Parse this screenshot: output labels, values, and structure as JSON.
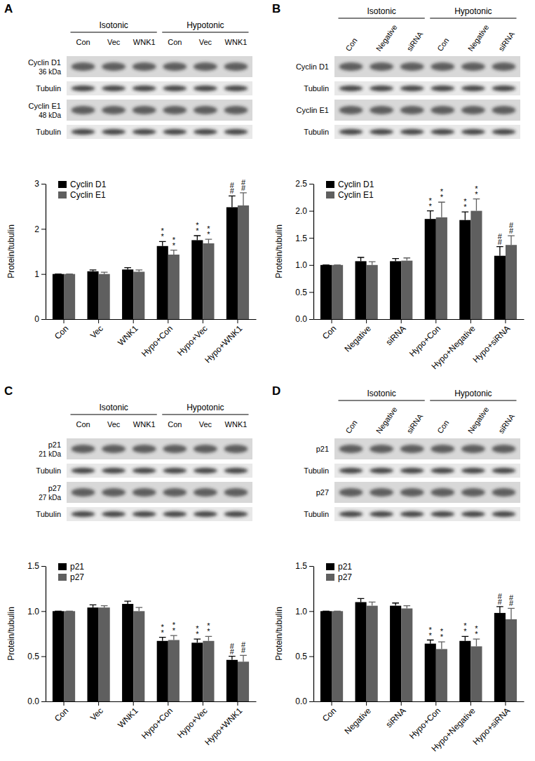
{
  "chart_data": [
    {
      "type": "bar",
      "title": "A",
      "y_label": "Protein/tubulin",
      "annotations": {
        "groups": [
          "Isotonic",
          "Hypotonic"
        ],
        "lanes": [
          "Con",
          "Vec",
          "WNK1",
          "Con",
          "Vec",
          "WNK1"
        ],
        "blots": [
          {
            "label": "Cyclin D1",
            "size": "36 kDa"
          },
          {
            "label": "Tubulin"
          },
          {
            "label": "Cyclin E1",
            "size": "48 kDa"
          },
          {
            "label": "Tubulin"
          }
        ]
      },
      "categories": [
        "Con",
        "Vec",
        "WNK1",
        "Hypo+Con",
        "Hypo+Vec",
        "Hypo+WNK1"
      ],
      "series": [
        {
          "name": "Cyclin D1",
          "color": "#000000",
          "values": [
            1.0,
            1.06,
            1.1,
            1.62,
            1.75,
            2.48
          ],
          "errors": [
            0,
            0.03,
            0.04,
            0.1,
            0.1,
            0.25
          ],
          "significance": [
            null,
            null,
            null,
            "**",
            "**",
            "##"
          ]
        },
        {
          "name": "Cyclin E1",
          "color": "#5f5f5f",
          "values": [
            1.0,
            1.0,
            1.05,
            1.43,
            1.68,
            2.52
          ],
          "errors": [
            0,
            0.04,
            0.04,
            0.1,
            0.09,
            0.28
          ],
          "significance": [
            null,
            null,
            null,
            "**",
            "**",
            "##"
          ]
        }
      ],
      "ylim": [
        0,
        3
      ],
      "yticks": [
        0,
        1,
        2,
        3
      ],
      "legend": "top-left"
    },
    {
      "type": "bar",
      "title": "B",
      "y_label": "Protein/tubulin",
      "annotations": {
        "groups": [
          "Isotonic",
          "Hypotonic"
        ],
        "lanes": [
          "Con",
          "Negative",
          "siRNA",
          "Con",
          "Negative",
          "siRNA"
        ],
        "blots": [
          {
            "label": "Cyclin D1"
          },
          {
            "label": "Tubulin"
          },
          {
            "label": "Cyclin E1"
          },
          {
            "label": "Tubulin"
          }
        ]
      },
      "categories": [
        "Con",
        "Negative",
        "siRNA",
        "Hypo+Con",
        "Hypo+Negative",
        "Hypo+siRNA"
      ],
      "series": [
        {
          "name": "Cyclin D1",
          "color": "#000000",
          "values": [
            1.0,
            1.07,
            1.07,
            1.85,
            1.83,
            1.17
          ],
          "errors": [
            0,
            0.07,
            0.05,
            0.15,
            0.15,
            0.17
          ],
          "significance": [
            null,
            null,
            null,
            "**",
            "**",
            "##"
          ]
        },
        {
          "name": "Cyclin E1",
          "color": "#5f5f5f",
          "values": [
            1.0,
            1.0,
            1.08,
            1.88,
            2.0,
            1.37
          ],
          "errors": [
            0,
            0.06,
            0.05,
            0.28,
            0.22,
            0.17
          ],
          "significance": [
            null,
            null,
            null,
            "**",
            "**",
            "##"
          ]
        }
      ],
      "ylim": [
        0,
        2.5
      ],
      "yticks": [
        {
          "value": 0,
          "label": "0.0"
        },
        0.5,
        {
          "value": 1,
          "label": "1.0"
        },
        1.5,
        {
          "value": 2,
          "label": "2.0"
        },
        2.5
      ],
      "legend": "top-left"
    },
    {
      "type": "bar",
      "title": "C",
      "y_label": "Protein/tubulin",
      "annotations": {
        "groups": [
          "Isotonic",
          "Hypotonic"
        ],
        "lanes": [
          "Con",
          "Vec",
          "WNK1",
          "Con",
          "Vec",
          "WNK1"
        ],
        "blots": [
          {
            "label": "p21",
            "size": "21 kDa"
          },
          {
            "label": "Tubulin"
          },
          {
            "label": "p27",
            "size": "27 kDa"
          },
          {
            "label": "Tubulin"
          }
        ]
      },
      "categories": [
        "Con",
        "Vec",
        "WNK1",
        "Hypo+Con",
        "Hypo+Vec",
        "Hypo+WNK1"
      ],
      "series": [
        {
          "name": "p21",
          "color": "#000000",
          "values": [
            1.0,
            1.04,
            1.08,
            0.67,
            0.65,
            0.46
          ],
          "errors": [
            0,
            0.03,
            0.03,
            0.04,
            0.04,
            0.04
          ],
          "significance": [
            null,
            null,
            null,
            "**",
            "**",
            "##"
          ]
        },
        {
          "name": "p27",
          "color": "#5f5f5f",
          "values": [
            1.0,
            1.04,
            1.0,
            0.68,
            0.67,
            0.44
          ],
          "errors": [
            0,
            0.02,
            0.04,
            0.05,
            0.05,
            0.07
          ],
          "significance": [
            null,
            null,
            null,
            "**",
            "**",
            "##"
          ]
        }
      ],
      "ylim": [
        0,
        1.5
      ],
      "yticks": [
        {
          "value": 0,
          "label": "0.0"
        },
        0.5,
        {
          "value": 1,
          "label": "1.0"
        },
        1.5
      ],
      "legend": "top-left"
    },
    {
      "type": "bar",
      "title": "D",
      "y_label": "Protein/tubulin",
      "annotations": {
        "groups": [
          "Isotonic",
          "Hypotonic"
        ],
        "lanes": [
          "Con",
          "Negative",
          "siRNA",
          "Con",
          "Negative",
          "siRNA"
        ],
        "blots": [
          {
            "label": "p21"
          },
          {
            "label": "Tubulin"
          },
          {
            "label": "p27"
          },
          {
            "label": "Tubulin"
          }
        ]
      },
      "categories": [
        "Con",
        "Negative",
        "siRNA",
        "Hypo+Con",
        "Hypo+Negative",
        "Hypo+siRNA"
      ],
      "series": [
        {
          "name": "p21",
          "color": "#000000",
          "values": [
            1.0,
            1.1,
            1.06,
            0.64,
            0.67,
            0.98
          ],
          "errors": [
            0,
            0.04,
            0.03,
            0.04,
            0.05,
            0.07
          ],
          "significance": [
            null,
            null,
            null,
            "**",
            "**",
            "##"
          ]
        },
        {
          "name": "p27",
          "color": "#5f5f5f",
          "values": [
            1.0,
            1.06,
            1.03,
            0.58,
            0.61,
            0.91
          ],
          "errors": [
            0,
            0.04,
            0.03,
            0.08,
            0.08,
            0.12
          ],
          "significance": [
            null,
            null,
            null,
            "**",
            "**",
            "##"
          ]
        }
      ],
      "ylim": [
        0,
        1.5
      ],
      "yticks": [
        {
          "value": 0,
          "label": "0.0"
        },
        0.5,
        {
          "value": 1,
          "label": "1.0"
        },
        1.5
      ],
      "legend": "top-left"
    }
  ]
}
